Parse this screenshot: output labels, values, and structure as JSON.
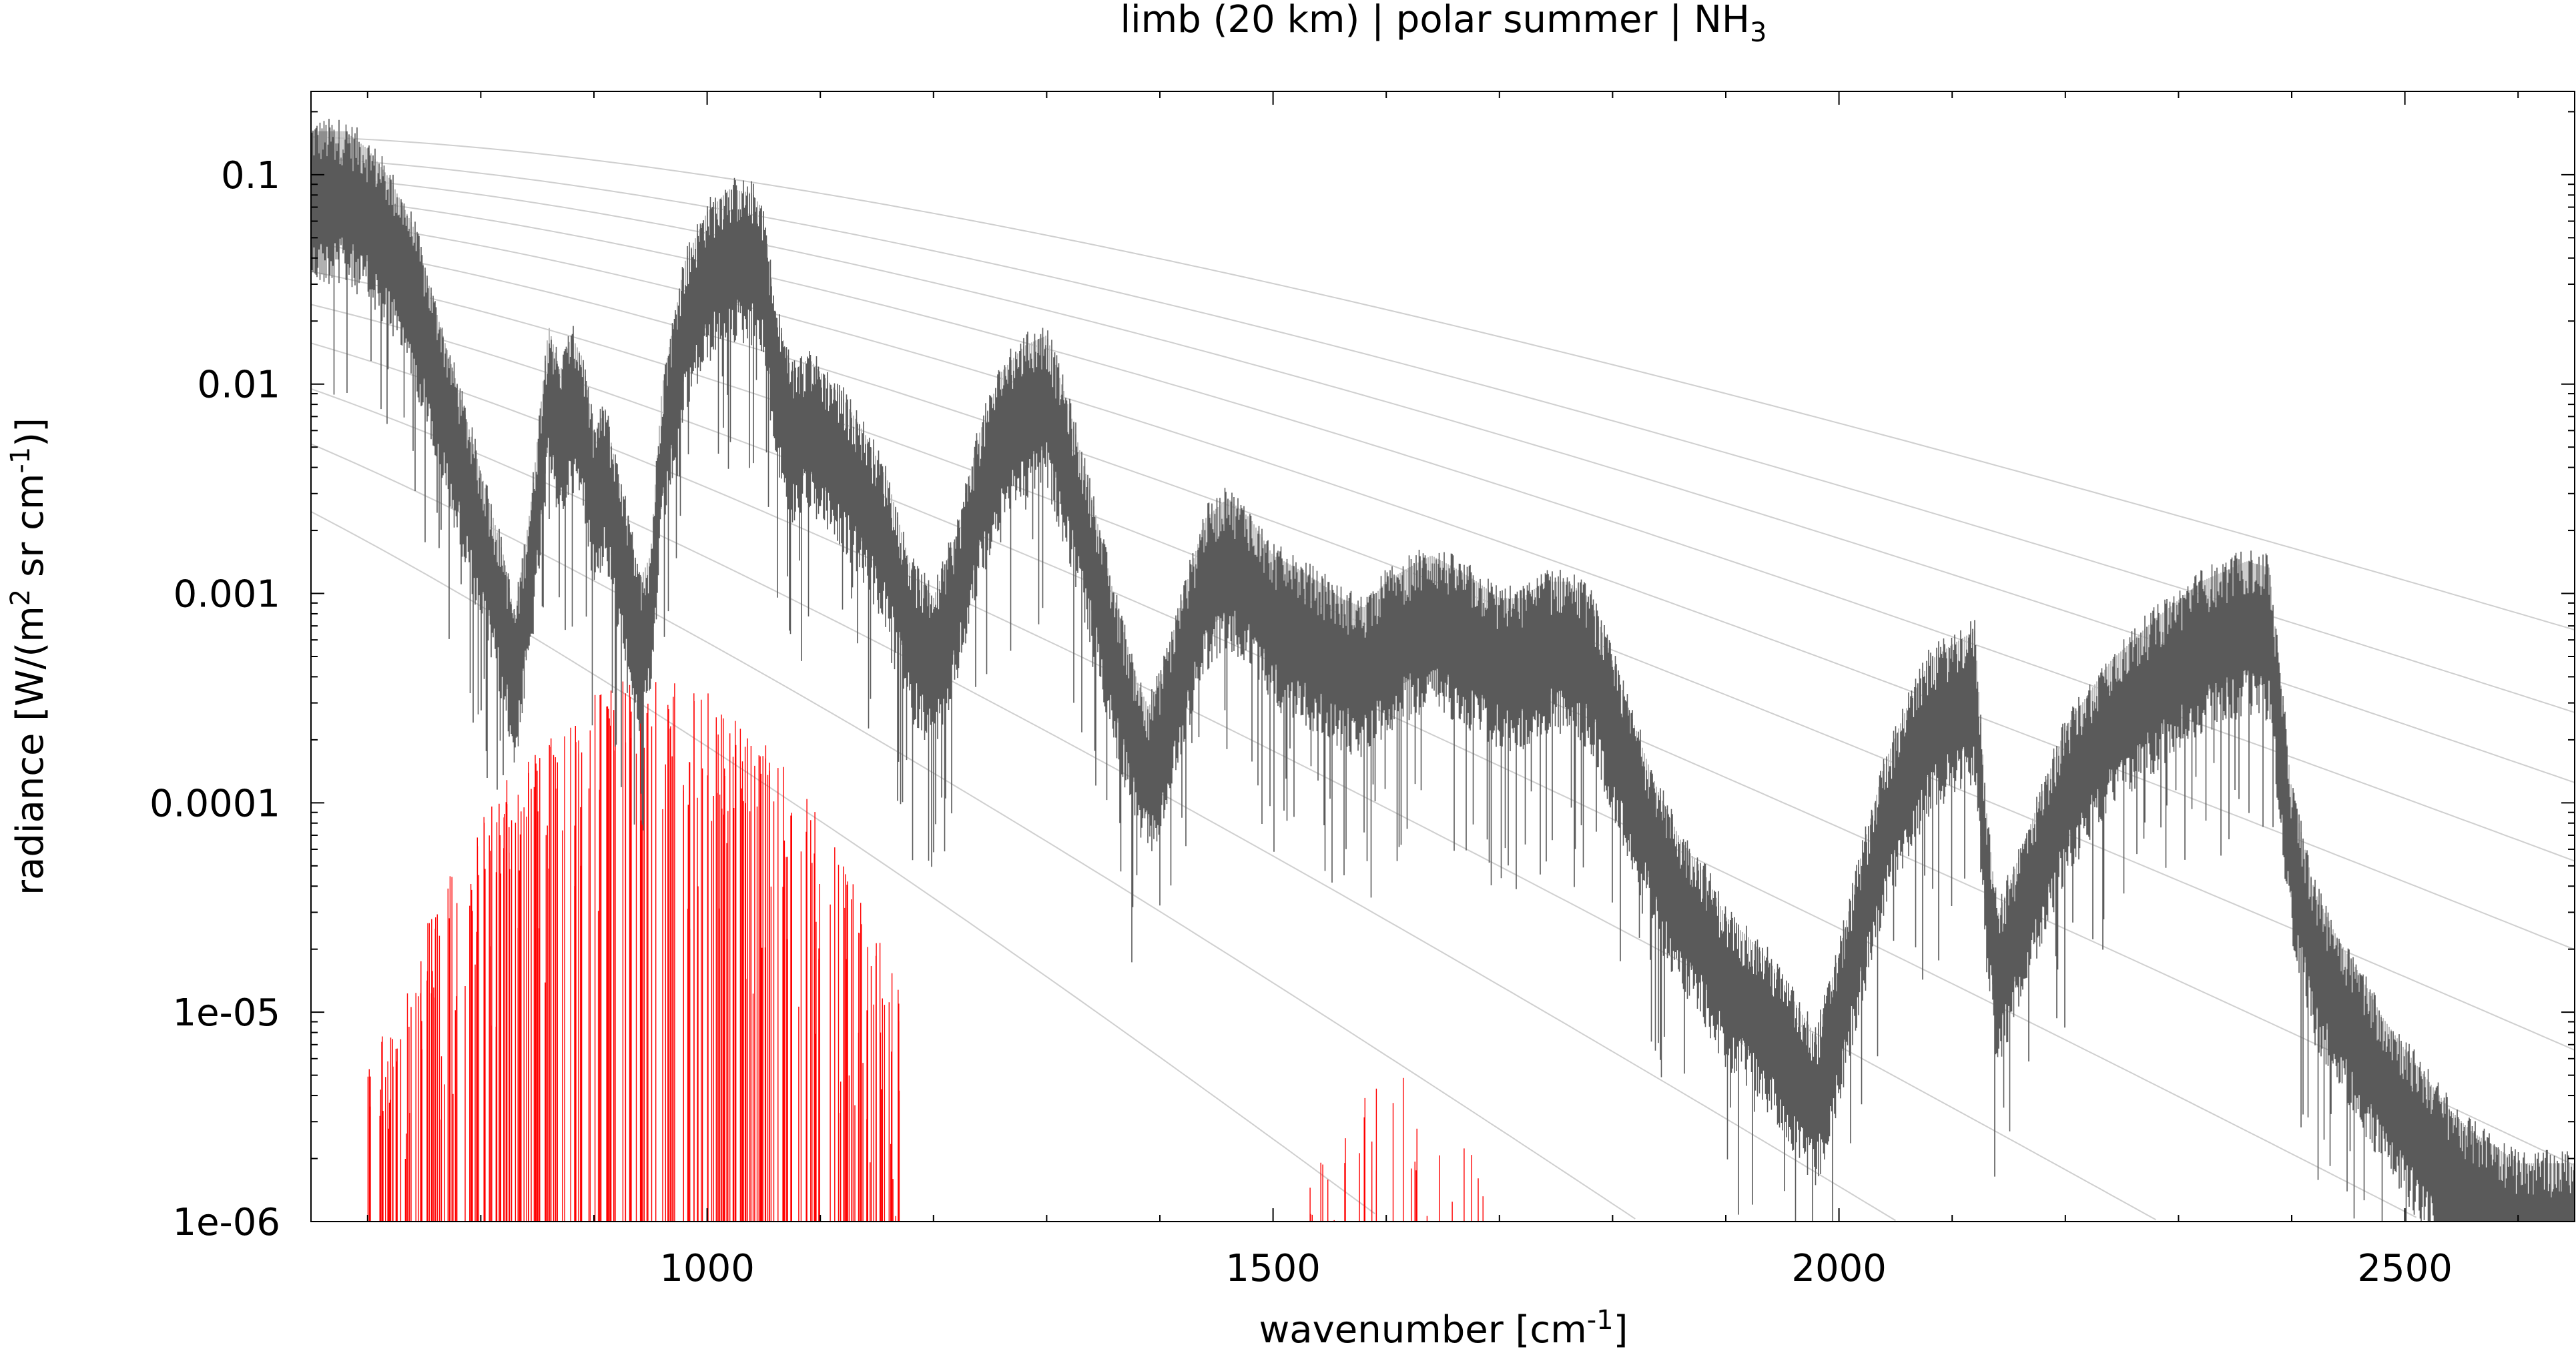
{
  "chart_data": {
    "type": "line",
    "title": {
      "main": "limb (20 km) | polar summer | NH",
      "sub": "3"
    },
    "xlabel": {
      "pre": "wavenumber [cm",
      "sup": "-1",
      "post": "]"
    },
    "ylabel": {
      "p1": "radiance [W/(m",
      "s1": "2",
      "p2": " sr cm",
      "s2": "-1",
      "p3": ")]"
    },
    "xlim": [
      650,
      2650
    ],
    "ylim": [
      1e-06,
      0.25
    ],
    "yscale": "log",
    "x_ticks": [
      {
        "value": 1000,
        "label": "1000"
      },
      {
        "value": 1500,
        "label": "1500"
      },
      {
        "value": 2000,
        "label": "2000"
      },
      {
        "value": 2500,
        "label": "2500"
      }
    ],
    "y_ticks": [
      {
        "value": 0.1,
        "label": "0.1"
      },
      {
        "value": 0.01,
        "label": "0.01"
      },
      {
        "value": 0.001,
        "label": "0.001"
      },
      {
        "value": 0.0001,
        "label": "0.0001"
      },
      {
        "value": 1e-05,
        "label": "1e-05"
      },
      {
        "value": 1e-06,
        "label": "1e-06"
      }
    ],
    "grid": false,
    "colors": {
      "total_spectrum": "#5a5a5a",
      "total_envelope": "#bdbdbd",
      "species_spectrum": "#ff0000",
      "reference_curves": "#cfcfcf"
    },
    "series": [
      {
        "style": "total_spectrum",
        "x": [
          650,
          680,
          700,
          720,
          740,
          760,
          780,
          800,
          820,
          830,
          845,
          860,
          870,
          880,
          890,
          900,
          910,
          920,
          930,
          940,
          950,
          960,
          980,
          1000,
          1020,
          1040,
          1050,
          1060,
          1075,
          1090,
          1100,
          1120,
          1140,
          1160,
          1180,
          1200,
          1220,
          1240,
          1260,
          1280,
          1300,
          1320,
          1340,
          1360,
          1380,
          1390,
          1400,
          1420,
          1440,
          1460,
          1480,
          1500,
          1520,
          1540,
          1560,
          1580,
          1600,
          1620,
          1640,
          1660,
          1680,
          1700,
          1720,
          1740,
          1760,
          1780,
          1800,
          1820,
          1840,
          1860,
          1880,
          1900,
          1920,
          1940,
          1960,
          1980,
          2000,
          2020,
          2040,
          2060,
          2080,
          2100,
          2120,
          2130,
          2140,
          2160,
          2200,
          2240,
          2280,
          2320,
          2360,
          2380,
          2400,
          2420,
          2440,
          2460,
          2480,
          2500,
          2520,
          2540,
          2560,
          2580,
          2600,
          2620,
          2650
        ],
        "y": [
          0.085,
          0.085,
          0.07,
          0.05,
          0.03,
          0.012,
          0.005,
          0.002,
          0.0008,
          0.0004,
          0.0015,
          0.01,
          0.006,
          0.009,
          0.007,
          0.003,
          0.004,
          0.002,
          0.0012,
          0.0006,
          0.0008,
          0.005,
          0.02,
          0.035,
          0.045,
          0.043,
          0.035,
          0.012,
          0.006,
          0.007,
          0.006,
          0.0045,
          0.003,
          0.0018,
          0.0007,
          0.0005,
          0.001,
          0.003,
          0.006,
          0.008,
          0.009,
          0.004,
          0.0015,
          0.0005,
          0.0002,
          0.00015,
          0.0002,
          0.0005,
          0.0012,
          0.0015,
          0.0012,
          0.0008,
          0.0007,
          0.0006,
          0.0005,
          0.00045,
          0.0006,
          0.0007,
          0.0008,
          0.0007,
          0.0006,
          0.0005,
          0.0005,
          0.0006,
          0.0006,
          0.0005,
          0.00025,
          0.00012,
          6e-05,
          3.5e-05,
          2.5e-05,
          1.5e-05,
          1.2e-05,
          9e-06,
          6e-06,
          4e-06,
          1e-05,
          3e-05,
          8e-05,
          0.00015,
          0.00025,
          0.0003,
          0.00035,
          5e-05,
          1.5e-05,
          3e-05,
          0.00012,
          0.00025,
          0.0004,
          0.0006,
          0.00075,
          0.0007,
          6e-05,
          2e-05,
          1.2e-05,
          8e-06,
          5e-06,
          3.5e-06,
          2.5e-06,
          1.8e-06,
          1.4e-06,
          1.2e-06,
          1e-06,
          1e-06,
          1e-06
        ]
      }
    ]
  }
}
